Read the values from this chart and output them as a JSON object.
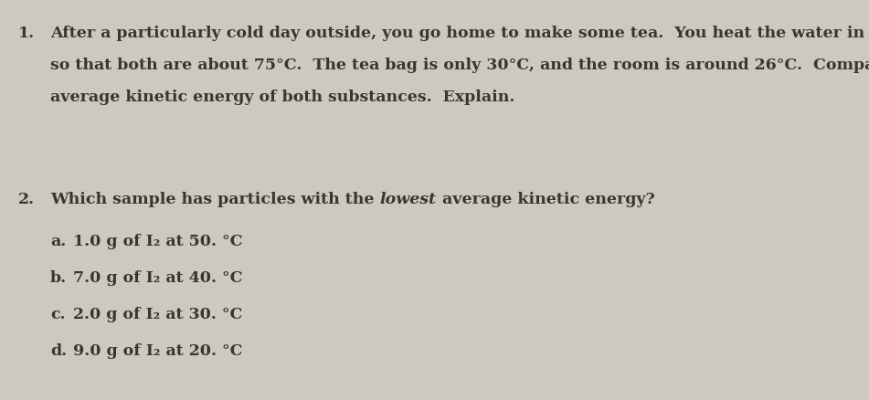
{
  "background_color": "#cdc8c0",
  "text_color": "#3a3530",
  "font_family": "DejaVu Serif",
  "q1_number": "1.",
  "q1_line1": "After a particularly cold day outside, you go home to make some tea.  You heat the water in your mug",
  "q1_line2": "so that both are about 75°C.  The tea bag is only 30°C, and the room is around 26°C.  Compare the",
  "q1_line3": "average kinetic energy of both substances.  Explain.",
  "q2_number": "2.",
  "q2_line": "Which sample has particles with the lowest average kinetic energy?",
  "q2_prompt": "Which sample has particles with the ",
  "q2_italic": "lowest",
  "q2_rest": " average kinetic energy?",
  "q2_a": "1.0 g of I₂ at 50. °C",
  "q2_b": "7.0 g of I₂ at 40. °C",
  "q2_c": "2.0 g of I₂ at 30. °C",
  "q2_d": "9.0 g of I₂ at 20. °C",
  "q2_a_label": "a.",
  "q2_b_label": "b.",
  "q2_c_label": "c.",
  "q2_d_label": "d.",
  "fontsize": 12.5,
  "fig_width": 9.51,
  "fig_height": 4.38,
  "dpi": 100
}
